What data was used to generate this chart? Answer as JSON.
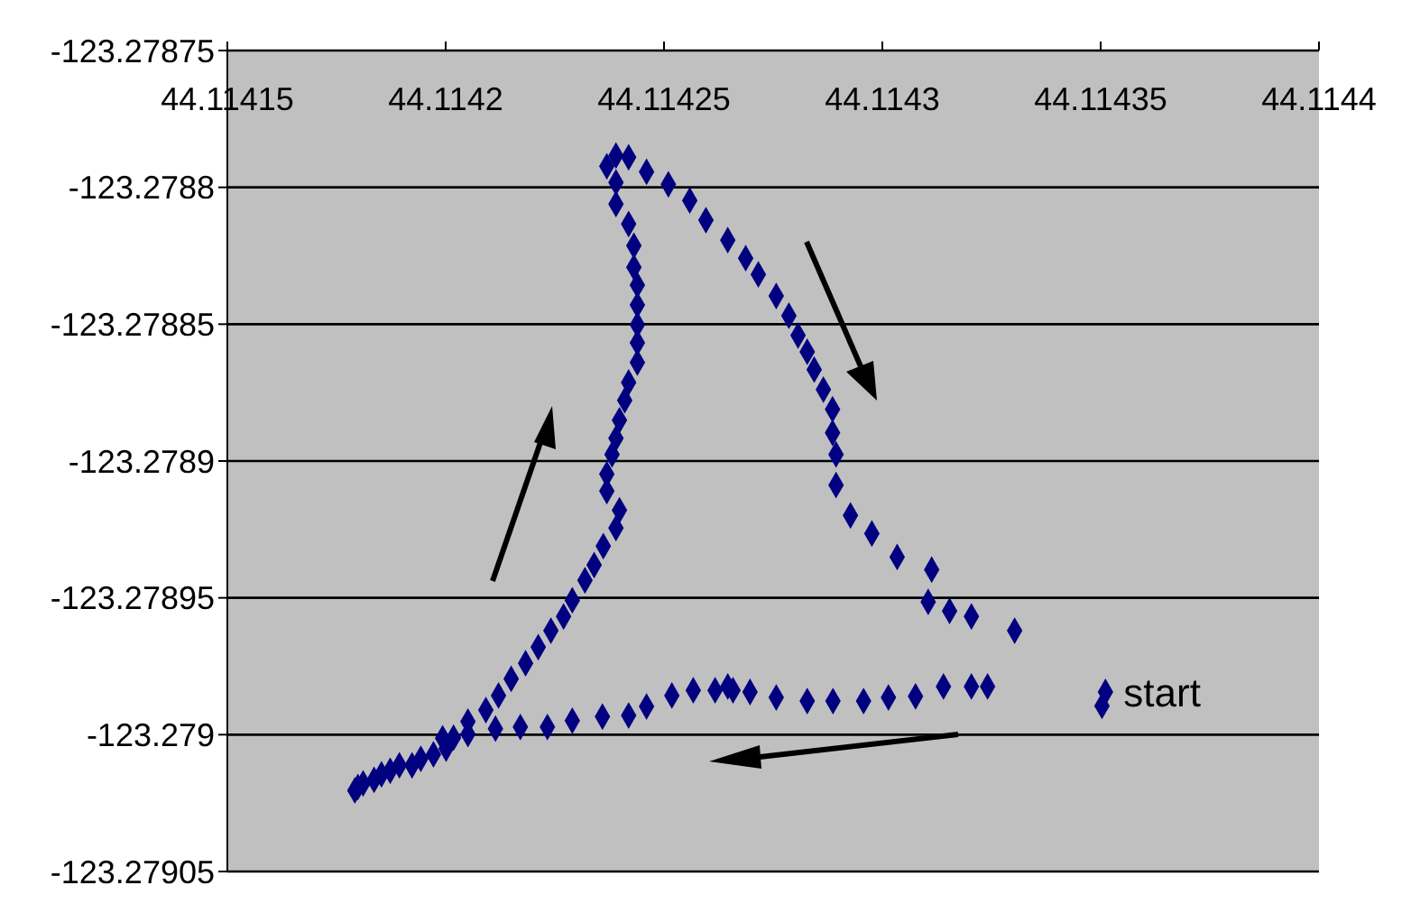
{
  "chart_data": {
    "type": "scatter",
    "xlim": [
      44.11415,
      44.1144
    ],
    "xticks": [
      44.11415,
      44.1142,
      44.11425,
      44.1143,
      44.11435,
      44.1144
    ],
    "ylim": [
      -123.27905,
      -123.27875
    ],
    "yticks": [
      -123.27905,
      -123.279,
      -123.27895,
      -123.2789,
      -123.27885,
      -123.2788,
      -123.27875
    ],
    "grid": "y",
    "legend": false,
    "marker": "diamond",
    "annotations": [
      {
        "text": "start",
        "x": 44.1143511,
        "y": -123.2789844
      }
    ],
    "series": [
      {
        "color": "#000080",
        "x": [
          44.1143511,
          44.1143503,
          44.1143241,
          44.1143204,
          44.114314,
          44.1143076,
          44.1143014,
          44.1142957,
          44.1142887,
          44.1142828,
          44.1142757,
          44.1142697,
          44.1142658,
          44.1142646,
          44.1142617,
          44.1142567,
          44.1142518,
          44.114246,
          44.1142419,
          44.1142359,
          44.114229,
          44.1142233,
          44.1142171,
          44.1142114,
          44.1142051,
          44.1142018,
          44.1142001,
          44.1141972,
          44.1141943,
          44.1141923,
          44.1141894,
          44.1141873,
          44.1141853,
          44.1141836,
          44.1141811,
          44.1141799,
          44.1141792,
          44.1141993,
          44.1142051,
          44.1142092,
          44.1142121,
          44.114215,
          44.1142183,
          44.1142212,
          44.1142241,
          44.114227,
          44.114229,
          44.1142319,
          44.114234,
          44.1142361,
          44.114239,
          44.1142398,
          44.1142369,
          44.1142369,
          44.1142381,
          44.114239,
          44.1142398,
          44.114241,
          44.1142419,
          44.1142439,
          44.1142439,
          44.1142439,
          44.1142439,
          44.1142439,
          44.1142431,
          44.1142431,
          44.1142419,
          44.114239,
          44.114239,
          44.1142369,
          44.114239,
          44.1142419,
          44.114246,
          44.114251,
          44.1142559,
          44.1142596,
          44.1142646,
          44.1142687,
          44.1142716,
          44.1142757,
          44.1142786,
          44.1142807,
          44.1142828,
          44.1142844,
          44.1142865,
          44.1142886,
          44.1142886,
          44.1142894,
          44.1142894,
          44.1142927,
          44.1142976,
          44.1143034,
          44.1143113,
          44.1143105,
          44.1143154,
          44.1143204,
          44.1143303
        ],
        "values": [
          -123.2789844,
          -123.2789895,
          -123.2789824,
          -123.2789824,
          -123.2789824,
          -123.278986,
          -123.2789864,
          -123.2789877,
          -123.2789877,
          -123.2789877,
          -123.2789864,
          -123.2789844,
          -123.2789838,
          -123.2789824,
          -123.2789838,
          -123.2789838,
          -123.2789857,
          -123.2789897,
          -123.278993,
          -123.2789934,
          -123.2789949,
          -123.2789972,
          -123.2789972,
          -123.2789978,
          -123.2789998,
          -123.2790011,
          -123.2790051,
          -123.2790072,
          -123.2790088,
          -123.2790112,
          -123.2790112,
          -123.2790132,
          -123.2790145,
          -123.2790165,
          -123.2790178,
          -123.2790191,
          -123.2790204,
          -123.2790013,
          -123.2789952,
          -123.278991,
          -123.2789857,
          -123.2789796,
          -123.2789739,
          -123.278968,
          -123.278962,
          -123.2789568,
          -123.2789509,
          -123.2789436,
          -123.278938,
          -123.2789311,
          -123.2789245,
          -123.278918,
          -123.278911,
          -123.2789048,
          -123.2788976,
          -123.2788917,
          -123.2788851,
          -123.2788778,
          -123.2788713,
          -123.278864,
          -123.2788568,
          -123.2788502,
          -123.278843,
          -123.2788357,
          -123.2788292,
          -123.2788213,
          -123.2788134,
          -123.2788061,
          -123.2787982,
          -123.2787923,
          -123.2787884,
          -123.278789,
          -123.2787943,
          -123.2787989,
          -123.2788048,
          -123.278812,
          -123.2788193,
          -123.2788259,
          -123.2788318,
          -123.2788397,
          -123.2788469,
          -123.2788541,
          -123.2788601,
          -123.2788666,
          -123.2788739,
          -123.2788811,
          -123.2788897,
          -123.2788976,
          -123.2789088,
          -123.2789199,
          -123.2789265,
          -123.2789351,
          -123.2789397,
          -123.2789515,
          -123.2789548,
          -123.2789568,
          -123.278962
        ]
      }
    ]
  }
}
